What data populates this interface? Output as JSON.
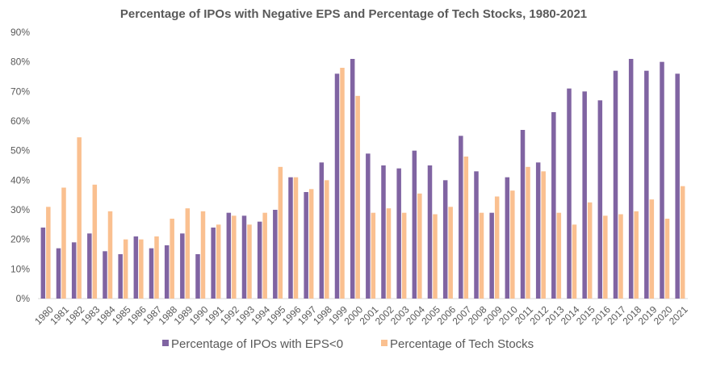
{
  "chart_data": {
    "type": "bar",
    "title": "Percentage of IPOs with Negative EPS and Percentage of Tech Stocks, 1980-2021",
    "xlabel": "",
    "ylabel": "",
    "ylim": [
      0,
      90
    ],
    "yticks": [
      "0%",
      "10%",
      "20%",
      "30%",
      "40%",
      "50%",
      "60%",
      "70%",
      "80%",
      "90%"
    ],
    "grid": false,
    "legend_position": "bottom",
    "categories": [
      "1980",
      "1981",
      "1982",
      "1983",
      "1984",
      "1985",
      "1986",
      "1987",
      "1988",
      "1989",
      "1990",
      "1991",
      "1992",
      "1993",
      "1994",
      "1995",
      "1996",
      "1997",
      "1998",
      "1999",
      "2000",
      "2001",
      "2002",
      "2003",
      "2004",
      "2005",
      "2006",
      "2007",
      "2008",
      "2009",
      "2010",
      "2011",
      "2012",
      "2013",
      "2014",
      "2015",
      "2016",
      "2017",
      "2018",
      "2019",
      "2020",
      "2021"
    ],
    "series": [
      {
        "name": "Percentage of IPOs with EPS<0",
        "color": "#8064a2",
        "values": [
          24,
          17,
          19,
          22,
          16,
          15,
          21,
          17,
          18,
          22,
          15,
          24,
          29,
          28,
          26,
          30,
          41,
          36,
          46,
          76,
          81,
          49,
          45,
          44,
          50,
          45,
          40,
          55,
          43,
          29,
          41,
          57,
          46,
          63,
          71,
          70,
          67,
          77,
          81,
          77,
          80,
          76
        ]
      },
      {
        "name": "Percentage of Tech Stocks",
        "color": "#fac090",
        "values": [
          31,
          37.5,
          54.5,
          38.5,
          29.5,
          20,
          20,
          21,
          27,
          30.5,
          29.5,
          25,
          28,
          25,
          29,
          44.5,
          41,
          37,
          40,
          78,
          68.5,
          29,
          30.5,
          29,
          35.5,
          28.5,
          31,
          48,
          29,
          34.5,
          36.5,
          44.5,
          43,
          29,
          25,
          32.5,
          28,
          28.5,
          29.5,
          33.5,
          27,
          38
        ]
      }
    ]
  }
}
